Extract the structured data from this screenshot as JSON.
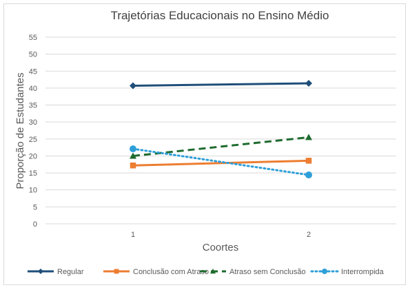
{
  "chart_data": {
    "type": "line",
    "title": "Trajetórias Educacionais no Ensino Médio",
    "xlabel": "Coortes",
    "ylabel": "Proporção de Estudantes",
    "categories": [
      "1",
      "2"
    ],
    "ylim": [
      0,
      55
    ],
    "yticks": [
      0,
      5,
      10,
      15,
      20,
      25,
      30,
      35,
      40,
      45,
      50,
      55
    ],
    "grid": true,
    "legend_position": "bottom",
    "series": [
      {
        "name": "Regular",
        "values": [
          40.7,
          41.4
        ],
        "color": "#1f4e79",
        "marker": "diamond",
        "dash": "solid"
      },
      {
        "name": "Conclusão com Atraso",
        "values": [
          17.2,
          18.6
        ],
        "color": "#ed7d31",
        "marker": "square",
        "dash": "solid"
      },
      {
        "name": "Atraso sem Conclusão",
        "values": [
          20.0,
          25.5
        ],
        "color": "#1e6b2e",
        "marker": "triangle",
        "dash": "dashed"
      },
      {
        "name": "Interrompida",
        "values": [
          22.1,
          14.4
        ],
        "color": "#2e9fd9",
        "marker": "circle",
        "dash": "dotted"
      }
    ]
  }
}
